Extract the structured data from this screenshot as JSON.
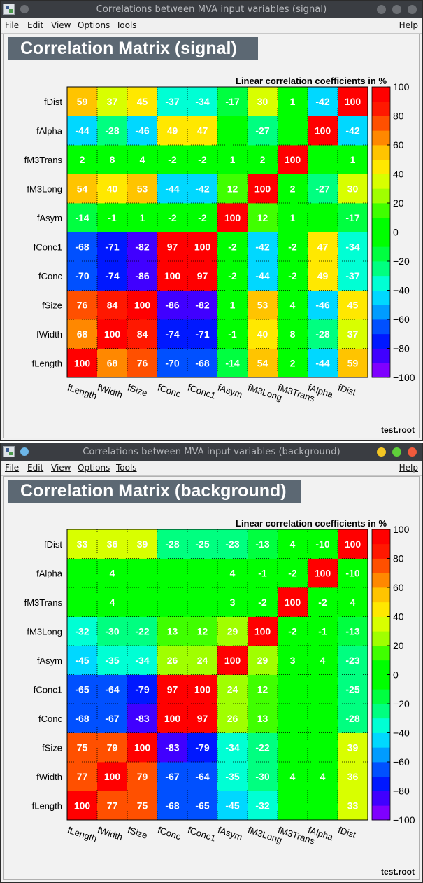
{
  "windows": [
    {
      "id": "signal",
      "title": "Correlations between MVA input variables (signal)",
      "header": "Correlation Matrix (signal)",
      "footer": "test.root",
      "active": false
    },
    {
      "id": "background",
      "title": "Correlations between MVA input variables (background)",
      "header": "Correlation Matrix (background)",
      "footer": "test.root",
      "active": true
    }
  ],
  "menu": {
    "file": "File",
    "edit": "Edit",
    "view": "View",
    "options": "Options",
    "tools": "Tools",
    "help": "Help"
  },
  "icons": {
    "app": "root-canvas-icon",
    "pin": "sticky-pin-icon",
    "minimize": "minimize-icon",
    "maximize": "maximize-icon",
    "close": "close-icon"
  },
  "colors": {
    "titlebar": "#3a3d42",
    "header_box": "#5c6873",
    "palette": [
      "#7f00ff",
      "#4000ff",
      "#0018ff",
      "#0050ff",
      "#009cff",
      "#00d8ff",
      "#00ffd4",
      "#00ff80",
      "#00ff40",
      "#00ff00",
      "#00ff00",
      "#40ff00",
      "#a0ff00",
      "#d8ff00",
      "#ffe800",
      "#ffc400",
      "#ff8800",
      "#ff5000",
      "#ff1800",
      "#ff0000"
    ]
  },
  "chart_data": [
    {
      "type": "heatmap",
      "name": "signal",
      "title": "Linear correlation coefficients in %",
      "x_labels": [
        "fLength",
        "fWidth",
        "fSize",
        "fConc",
        "fConc1",
        "fAsym",
        "fM3Long",
        "fM3Trans",
        "fAlpha",
        "fDist"
      ],
      "y_labels": [
        "fLength",
        "fWidth",
        "fSize",
        "fConc",
        "fConc1",
        "fAsym",
        "fM3Long",
        "fM3Trans",
        "fAlpha",
        "fDist"
      ],
      "values": [
        [
          100,
          68,
          76,
          -70,
          -68,
          -14,
          54,
          2,
          -44,
          59
        ],
        [
          68,
          100,
          84,
          -74,
          -71,
          -1,
          40,
          8,
          -28,
          37
        ],
        [
          76,
          84,
          100,
          -86,
          -82,
          1,
          53,
          4,
          -46,
          45
        ],
        [
          -70,
          -74,
          -86,
          100,
          97,
          -2,
          -44,
          -2,
          49,
          -37
        ],
        [
          -68,
          -71,
          -82,
          97,
          100,
          -2,
          -42,
          -2,
          47,
          -34
        ],
        [
          -14,
          -1,
          1,
          -2,
          -2,
          100,
          12,
          1,
          0,
          -17
        ],
        [
          54,
          40,
          53,
          -44,
          -42,
          12,
          100,
          2,
          -27,
          30
        ],
        [
          2,
          8,
          4,
          -2,
          -2,
          1,
          2,
          100,
          0,
          1
        ],
        [
          -44,
          -28,
          -46,
          49,
          47,
          0,
          -27,
          0,
          100,
          -42
        ],
        [
          59,
          37,
          45,
          -37,
          -34,
          -17,
          30,
          1,
          -42,
          100
        ]
      ],
      "zlim": [
        -100,
        100
      ],
      "colorbar_ticks": [
        100,
        80,
        60,
        40,
        20,
        0,
        -20,
        -40,
        -60,
        -80,
        -100
      ]
    },
    {
      "type": "heatmap",
      "name": "background",
      "title": "Linear correlation coefficients in %",
      "x_labels": [
        "fLength",
        "fWidth",
        "fSize",
        "fConc",
        "fConc1",
        "fAsym",
        "fM3Long",
        "fM3Trans",
        "fAlpha",
        "fDist"
      ],
      "y_labels": [
        "fLength",
        "fWidth",
        "fSize",
        "fConc",
        "fConc1",
        "fAsym",
        "fM3Long",
        "fM3Trans",
        "fAlpha",
        "fDist"
      ],
      "values": [
        [
          100,
          77,
          75,
          -68,
          -65,
          -45,
          -32,
          0,
          0,
          33
        ],
        [
          77,
          100,
          79,
          -67,
          -64,
          -35,
          -30,
          4,
          4,
          36
        ],
        [
          75,
          79,
          100,
          -83,
          -79,
          -34,
          -22,
          0,
          0,
          39
        ],
        [
          -68,
          -67,
          -83,
          100,
          97,
          26,
          13,
          0,
          0,
          -28
        ],
        [
          -65,
          -64,
          -79,
          97,
          100,
          24,
          12,
          0,
          0,
          -25
        ],
        [
          -45,
          -35,
          -34,
          26,
          24,
          100,
          29,
          3,
          4,
          -23
        ],
        [
          -32,
          -30,
          -22,
          13,
          12,
          29,
          100,
          -2,
          -1,
          -13
        ],
        [
          0,
          4,
          0,
          0,
          0,
          3,
          -2,
          100,
          -2,
          4
        ],
        [
          0,
          4,
          0,
          0,
          0,
          4,
          -1,
          -2,
          100,
          -10
        ],
        [
          33,
          36,
          39,
          -28,
          -25,
          -23,
          -13,
          4,
          -10,
          100
        ]
      ],
      "zlim": [
        -100,
        100
      ],
      "colorbar_ticks": [
        100,
        80,
        60,
        40,
        20,
        0,
        -20,
        -40,
        -60,
        -80,
        -100
      ]
    }
  ]
}
